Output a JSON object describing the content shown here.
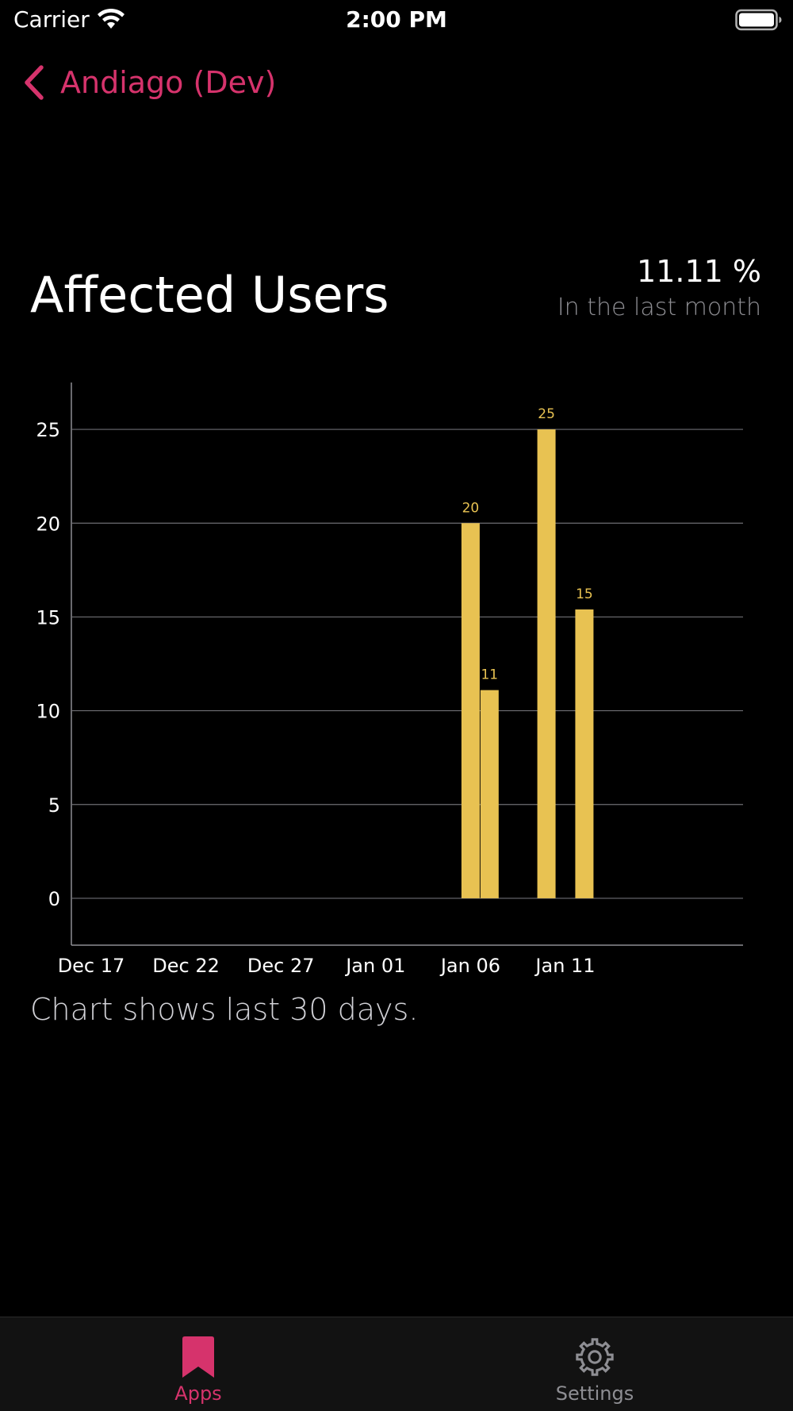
{
  "status_bar": {
    "carrier": "Carrier",
    "time": "2:00 PM"
  },
  "nav": {
    "back_label": "Andiago (Dev)"
  },
  "header": {
    "title": "Affected Users",
    "stat_value": "11.11 %",
    "stat_caption": "In the last month"
  },
  "chart_note": "Chart shows last 30 days.",
  "colors": {
    "accent": "#d6336c",
    "bar": "#e8c252",
    "tab_inactive": "#8e8e93"
  },
  "tabs": [
    {
      "label": "Apps",
      "icon": "bookmark-icon",
      "active": true
    },
    {
      "label": "Settings",
      "icon": "gear-icon",
      "active": false
    }
  ],
  "chart_data": {
    "type": "bar",
    "x_ticks": [
      "Dec 17",
      "Dec 22",
      "Dec 27",
      "Jan 01",
      "Jan 06",
      "Jan 11"
    ],
    "x_range": [
      "Dec 17",
      "Jan 16"
    ],
    "y_ticks": [
      0,
      5,
      10,
      15,
      20,
      25
    ],
    "ylim": [
      -2.5,
      27.5
    ],
    "grid": true,
    "points": [
      {
        "x": "Jan 06",
        "value": 20,
        "label": "20"
      },
      {
        "x": "Jan 07",
        "value": 11.1,
        "label": "11"
      },
      {
        "x": "Jan 10",
        "value": 25,
        "label": "25"
      },
      {
        "x": "Jan 12",
        "value": 15.4,
        "label": "15"
      }
    ]
  }
}
